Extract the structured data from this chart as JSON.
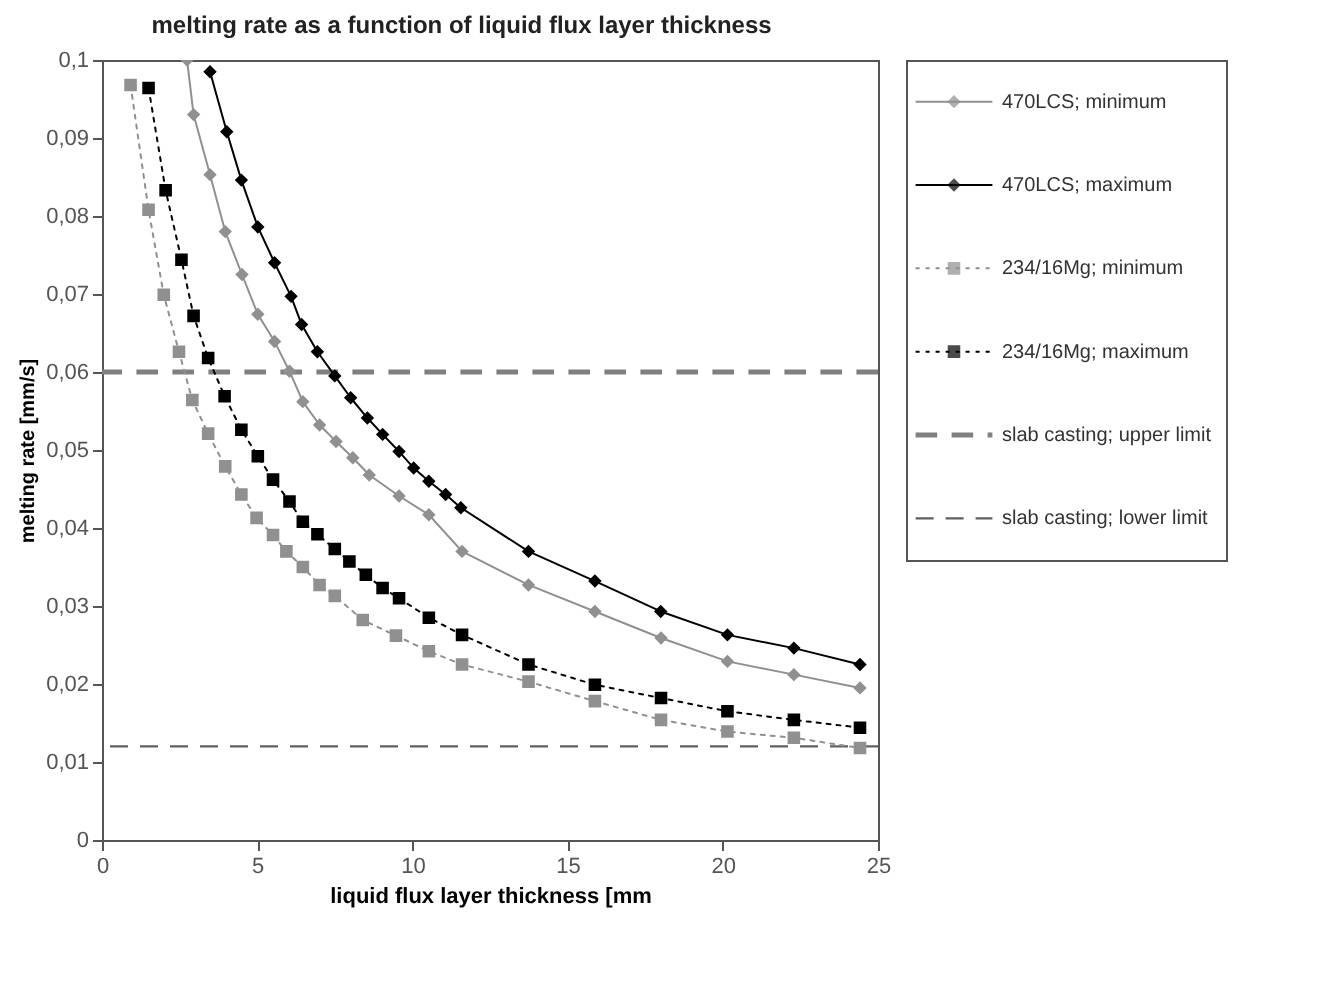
{
  "chart_data": {
    "type": "line",
    "title": "melting rate as a function of liquid flux layer thickness",
    "xlabel": "liquid flux layer thickness [mm",
    "ylabel": "melting rate [mm/s]",
    "xlim": [
      0,
      25
    ],
    "xticks": [
      0,
      5,
      10,
      15,
      20,
      25
    ],
    "ylim": [
      0,
      0.1
    ],
    "yticks": [
      0,
      {
        "value": 0.01,
        "label": "0,01"
      },
      {
        "value": 0.02,
        "label": "0,02"
      },
      {
        "value": 0.03,
        "label": "0,03"
      },
      {
        "value": 0.04,
        "label": "0,04"
      },
      {
        "value": 0.05,
        "label": "0,05"
      },
      {
        "value": 0.06,
        "label": "0,06"
      },
      {
        "value": 0.07,
        "label": "0,07"
      },
      {
        "value": 0.08,
        "label": "0,08"
      },
      {
        "value": 0.09,
        "label": "0,09"
      },
      {
        "value": 0.1,
        "label": "0,1"
      }
    ],
    "legend": "right",
    "series": [
      {
        "name": "470LCS; minimum",
        "color": "#909090",
        "marker": "diamond",
        "line_style": "solid",
        "x": [
          2.74,
          2.95,
          3.48,
          3.97,
          4.51,
          5.02,
          5.56,
          6.04,
          6.47,
          7.01,
          7.54,
          8.08,
          8.61,
          9.57,
          10.53,
          11.6,
          13.74,
          15.88,
          18.01,
          20.15,
          22.29,
          24.42
        ],
        "values": [
          0.1,
          0.093,
          0.0853,
          0.078,
          0.0725,
          0.0674,
          0.0639,
          0.0601,
          0.0562,
          0.0532,
          0.0511,
          0.049,
          0.0468,
          0.0441,
          0.0417,
          0.037,
          0.0327,
          0.0293,
          0.0259,
          0.0229,
          0.0212,
          0.0195
        ]
      },
      {
        "name": "470LCS; maximum",
        "color": "#000000",
        "marker": "diamond",
        "line_style": "solid",
        "x": [
          3.48,
          4.02,
          4.49,
          5.02,
          5.56,
          6.09,
          6.43,
          6.94,
          7.5,
          8.01,
          8.55,
          9.04,
          9.57,
          10.04,
          10.53,
          11.07,
          11.56,
          13.74,
          15.88,
          18.0,
          20.15,
          22.29,
          24.42
        ],
        "values": [
          0.0985,
          0.0908,
          0.0846,
          0.0786,
          0.074,
          0.0697,
          0.0661,
          0.0626,
          0.0595,
          0.0567,
          0.0541,
          0.052,
          0.0498,
          0.0477,
          0.046,
          0.0443,
          0.0426,
          0.037,
          0.0332,
          0.0293,
          0.0263,
          0.0246,
          0.0225
        ]
      },
      {
        "name": "234/16Mg; minimum",
        "color": "#909090",
        "marker": "square",
        "line_style": "dotted",
        "x": [
          0.92,
          1.5,
          1.99,
          2.48,
          2.91,
          3.42,
          3.97,
          4.49,
          4.98,
          5.51,
          5.94,
          6.47,
          7.01,
          7.5,
          8.4,
          9.47,
          10.53,
          11.6,
          13.74,
          15.88,
          18.01,
          20.15,
          22.29,
          24.42
        ],
        "values": [
          0.0968,
          0.0808,
          0.0699,
          0.0626,
          0.0564,
          0.0521,
          0.0479,
          0.0443,
          0.0413,
          0.0391,
          0.037,
          0.035,
          0.0327,
          0.0313,
          0.0282,
          0.0262,
          0.0242,
          0.0225,
          0.0203,
          0.0178,
          0.0154,
          0.0139,
          0.0131,
          0.0118
        ]
      },
      {
        "name": "234/16Mg; maximum",
        "color": "#000000",
        "marker": "square",
        "line_style": "dotted",
        "x": [
          1.5,
          2.05,
          2.56,
          2.95,
          3.42,
          3.95,
          4.49,
          5.02,
          5.51,
          6.04,
          6.47,
          6.94,
          7.5,
          7.97,
          8.5,
          9.04,
          9.57,
          10.53,
          11.6,
          13.74,
          15.88,
          18.01,
          20.15,
          22.29,
          24.42
        ],
        "values": [
          0.0964,
          0.0833,
          0.0744,
          0.0672,
          0.0618,
          0.0569,
          0.0526,
          0.0492,
          0.0462,
          0.0434,
          0.0408,
          0.0392,
          0.0373,
          0.0357,
          0.034,
          0.0323,
          0.031,
          0.0285,
          0.0263,
          0.0225,
          0.0199,
          0.0182,
          0.0165,
          0.0154,
          0.0144
        ]
      }
    ],
    "ref_lines": [
      {
        "axis": "y",
        "value": 0.06,
        "label": "slab casting; upper limit",
        "color": "#808080",
        "line_style": "dashed"
      },
      {
        "axis": "y",
        "value": 0.012,
        "label": "slab casting; lower limit",
        "color": "#606060",
        "line_style": "dashed"
      }
    ]
  }
}
